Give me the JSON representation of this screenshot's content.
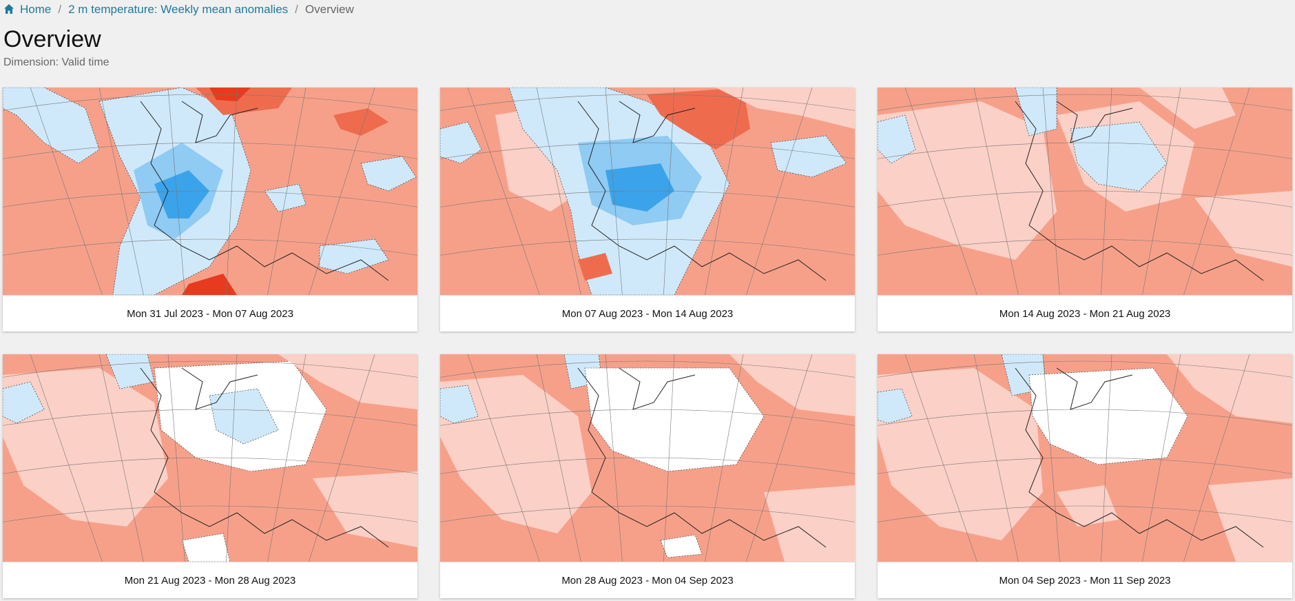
{
  "breadcrumb": {
    "home": "Home",
    "parent": "2 m temperature: Weekly mean anomalies",
    "current": "Overview"
  },
  "page": {
    "title": "Overview",
    "subtitle": "Dimension: Valid time"
  },
  "colors": {
    "link": "#1f7a9a",
    "warm_light": "#fbd0c6",
    "warm_mid": "#f6a08a",
    "warm_strong": "#ef6b4e",
    "warm_extreme": "#e83a1e",
    "cold_light": "#cfe9fb",
    "cold_mid": "#8fcbf3",
    "cold_strong": "#3ba3ea"
  },
  "cards": [
    {
      "caption": "Mon 31 Jul 2023 - Mon 07 Aug 2023",
      "icon": "anomaly-map",
      "anomaly": "cold-west-warm-east"
    },
    {
      "caption": "Mon 07 Aug 2023 - Mon 14 Aug 2023",
      "icon": "anomaly-map",
      "anomaly": "cold-central"
    },
    {
      "caption": "Mon 14 Aug 2023 - Mon 21 Aug 2023",
      "icon": "anomaly-map",
      "anomaly": "mostly-warm"
    },
    {
      "caption": "Mon 21 Aug 2023 - Mon 28 Aug 2023",
      "icon": "anomaly-map",
      "anomaly": "mostly-warm"
    },
    {
      "caption": "Mon 28 Aug 2023 - Mon 04 Sep 2023",
      "icon": "anomaly-map",
      "anomaly": "warm"
    },
    {
      "caption": "Mon 04 Sep 2023 - Mon 11 Sep 2023",
      "icon": "anomaly-map",
      "anomaly": "warm"
    }
  ]
}
